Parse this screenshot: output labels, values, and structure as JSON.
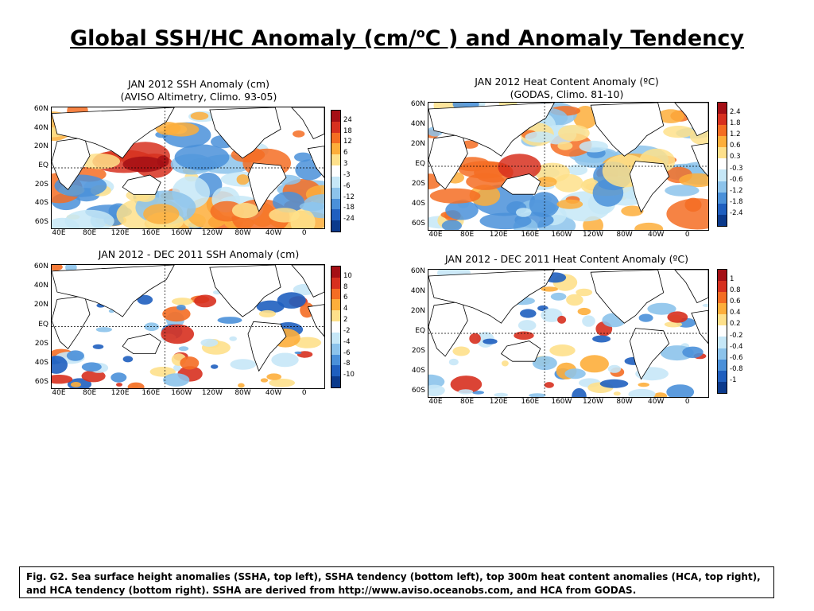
{
  "slide": {
    "title_pre": "Global SSH/HC Anomaly (cm/",
    "title_sup": "o",
    "title_post": "C ) and Anomaly Tendency"
  },
  "panels": {
    "ssh_anom": {
      "title1": "JAN 2012 SSH Anomaly (cm)",
      "title2": "(AVISO Altimetry, Climo. 93-05)",
      "lat_labels": [
        "60N",
        "40N",
        "20N",
        "EQ",
        "20S",
        "40S",
        "60S"
      ],
      "lon_labels": [
        "40E",
        "80E",
        "120E",
        "160E",
        "160W",
        "120W",
        "80W",
        "40W",
        "0"
      ],
      "colorbar": [
        "24",
        "18",
        "12",
        "6",
        "3",
        "-3",
        "-6",
        "-12",
        "-18",
        "-24"
      ]
    },
    "hc_anom": {
      "title1": "JAN 2012 Heat Content Anomaly (ºC)",
      "title2": "(GODAS, Climo. 81-10)",
      "lat_labels": [
        "60N",
        "40N",
        "20N",
        "EQ",
        "20S",
        "40S",
        "60S"
      ],
      "lon_labels": [
        "40E",
        "80E",
        "120E",
        "160E",
        "160W",
        "120W",
        "80W",
        "40W",
        "0"
      ],
      "colorbar": [
        "2.4",
        "1.8",
        "1.2",
        "0.6",
        "0.3",
        "-0.3",
        "-0.6",
        "-1.2",
        "-1.8",
        "-2.4"
      ]
    },
    "ssh_tend": {
      "title1": "JAN 2012 - DEC 2011 SSH Anomaly (cm)",
      "lat_labels": [
        "60N",
        "40N",
        "20N",
        "EQ",
        "20S",
        "40S",
        "60S"
      ],
      "lon_labels": [
        "40E",
        "80E",
        "120E",
        "160E",
        "160W",
        "120W",
        "80W",
        "40W",
        "0"
      ],
      "colorbar": [
        "10",
        "8",
        "6",
        "4",
        "2",
        "-2",
        "-4",
        "-6",
        "-8",
        "-10"
      ]
    },
    "hc_tend": {
      "title1": "JAN 2012 - DEC 2011 Heat Content Anomaly (ºC)",
      "lat_labels": [
        "60N",
        "40N",
        "20N",
        "EQ",
        "20S",
        "40S",
        "60S"
      ],
      "lon_labels": [
        "40E",
        "80E",
        "120E",
        "160E",
        "160W",
        "120W",
        "80W",
        "40W",
        "0"
      ],
      "colorbar": [
        "1",
        "0.8",
        "0.6",
        "0.4",
        "0.2",
        "-0.2",
        "-0.4",
        "-0.6",
        "-0.8",
        "-1"
      ]
    }
  },
  "colors": {
    "scale": [
      "#a50f15",
      "#d7301f",
      "#f46d23",
      "#fdae3b",
      "#fee08b",
      "#ffffff",
      "#c6e7f7",
      "#8cc3eb",
      "#4a90d9",
      "#1f5fbf",
      "#0b3a8c"
    ]
  },
  "caption": "Fig. G2. Sea surface height anomalies (SSHA, top left), SSHA tendency (bottom left), top 300m heat content anomalies (HCA, top right), and HCA tendency (bottom right).  SSHA are derived from http://www.aviso.oceanobs.com, and HCA from GODAS."
}
